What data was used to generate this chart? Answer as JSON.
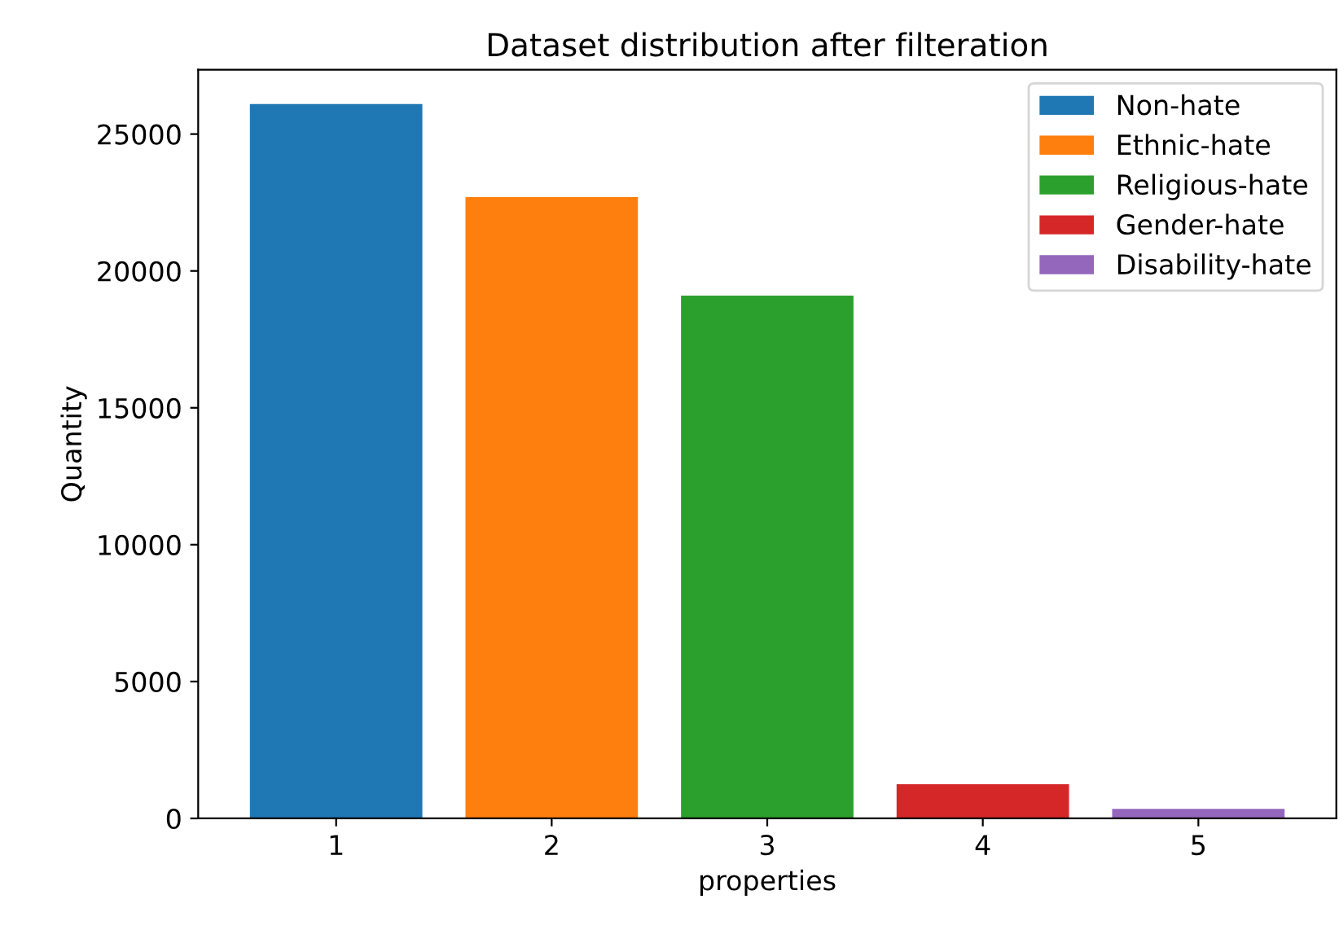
{
  "chart_data": {
    "type": "bar",
    "title": "Dataset distribution after filteration",
    "xlabel": "properties",
    "ylabel": "Quantity",
    "series": [
      {
        "name": "Non-hate",
        "color": "#1f77b4",
        "x": [
          1
        ],
        "values": [
          26100
        ]
      },
      {
        "name": "Ethnic-hate",
        "color": "#ff7f0e",
        "x": [
          2
        ],
        "values": [
          22700
        ]
      },
      {
        "name": "Religious-hate",
        "color": "#2ca02c",
        "x": [
          3
        ],
        "values": [
          19100
        ]
      },
      {
        "name": "Gender-hate",
        "color": "#d62728",
        "x": [
          4
        ],
        "values": [
          1250
        ]
      },
      {
        "name": "Disability-hate",
        "color": "#9467bd",
        "x": [
          5
        ],
        "values": [
          350
        ]
      }
    ],
    "xlim": [
      0.36,
      5.64
    ],
    "xticks": [
      1,
      2,
      3,
      4,
      5
    ],
    "ylim": [
      0,
      27350
    ],
    "yticks": [
      0,
      5000,
      10000,
      15000,
      20000,
      25000
    ],
    "grid": false,
    "legend": "top right"
  }
}
